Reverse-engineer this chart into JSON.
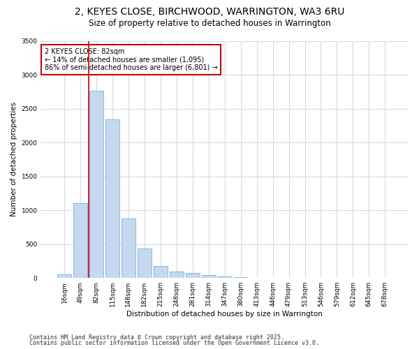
{
  "title_line1": "2, KEYES CLOSE, BIRCHWOOD, WARRINGTON, WA3 6RU",
  "title_line2": "Size of property relative to detached houses in Warrington",
  "xlabel": "Distribution of detached houses by size in Warrington",
  "ylabel": "Number of detached properties",
  "categories": [
    "16sqm",
    "49sqm",
    "82sqm",
    "115sqm",
    "148sqm",
    "182sqm",
    "215sqm",
    "248sqm",
    "281sqm",
    "314sqm",
    "347sqm",
    "380sqm",
    "413sqm",
    "446sqm",
    "479sqm",
    "513sqm",
    "546sqm",
    "579sqm",
    "612sqm",
    "645sqm",
    "678sqm"
  ],
  "values": [
    50,
    1100,
    2760,
    2340,
    880,
    430,
    180,
    100,
    75,
    40,
    20,
    10,
    5,
    3,
    2,
    1,
    1,
    0,
    0,
    0,
    0
  ],
  "bar_color": "#c5d8f0",
  "bar_edge_color": "#7aafd4",
  "highlight_bar_index": 2,
  "highlight_line_color": "#cc0000",
  "annotation_text": "2 KEYES CLOSE: 82sqm\n← 14% of detached houses are smaller (1,095)\n86% of semi-detached houses are larger (6,801) →",
  "annotation_box_color": "#ffffff",
  "annotation_box_edge_color": "#cc0000",
  "ylim": [
    0,
    3500
  ],
  "yticks": [
    0,
    500,
    1000,
    1500,
    2000,
    2500,
    3000,
    3500
  ],
  "fig_background": "#ffffff",
  "plot_background": "#ffffff",
  "grid_color": "#d0dce8",
  "footer_line1": "Contains HM Land Registry data © Crown copyright and database right 2025.",
  "footer_line2": "Contains public sector information licensed under the Open Government Licence v3.0.",
  "title_fontsize": 10,
  "subtitle_fontsize": 8.5,
  "axis_label_fontsize": 7.5,
  "tick_fontsize": 6.5,
  "annotation_fontsize": 7,
  "footer_fontsize": 6
}
